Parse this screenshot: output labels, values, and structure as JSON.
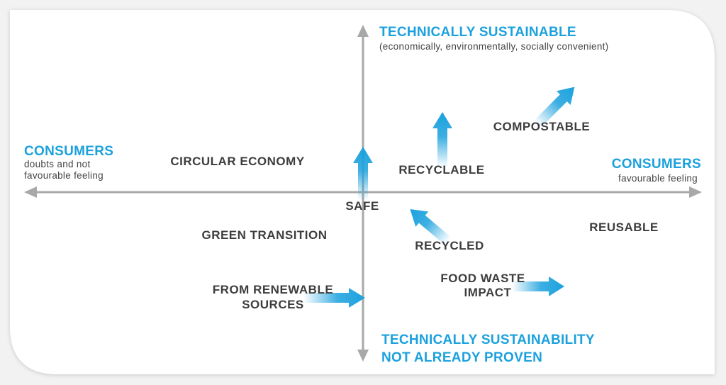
{
  "axes": {
    "top": {
      "title": "TECHNICALLY SUSTAINABLE",
      "subtitle": "(economically, environmentally, socially convenient)"
    },
    "bottom": {
      "title_lines": [
        "TECHNICALLY SUSTAINABILITY",
        "NOT ALREADY PROVEN"
      ]
    },
    "left": {
      "title": "CONSUMERS",
      "subtitle_lines": [
        "doubts and not",
        "favourable feeling"
      ]
    },
    "right": {
      "title": "CONSUMERS",
      "subtitle": "favourable feeling"
    }
  },
  "items": [
    {
      "label_lines": [
        "CIRCULAR ECONOMY"
      ]
    },
    {
      "label_lines": [
        "RECYCLABLE"
      ]
    },
    {
      "label_lines": [
        "COMPOSTABLE"
      ]
    },
    {
      "label_lines": [
        "SAFE"
      ]
    },
    {
      "label_lines": [
        "GREEN TRANSITION"
      ]
    },
    {
      "label_lines": [
        "RECYCLED"
      ]
    },
    {
      "label_lines": [
        "REUSABLE"
      ]
    },
    {
      "label_lines": [
        "FROM RENEWABLE",
        "SOURCES"
      ]
    },
    {
      "label_lines": [
        "FOOD WASTE",
        "IMPACT"
      ]
    }
  ]
}
